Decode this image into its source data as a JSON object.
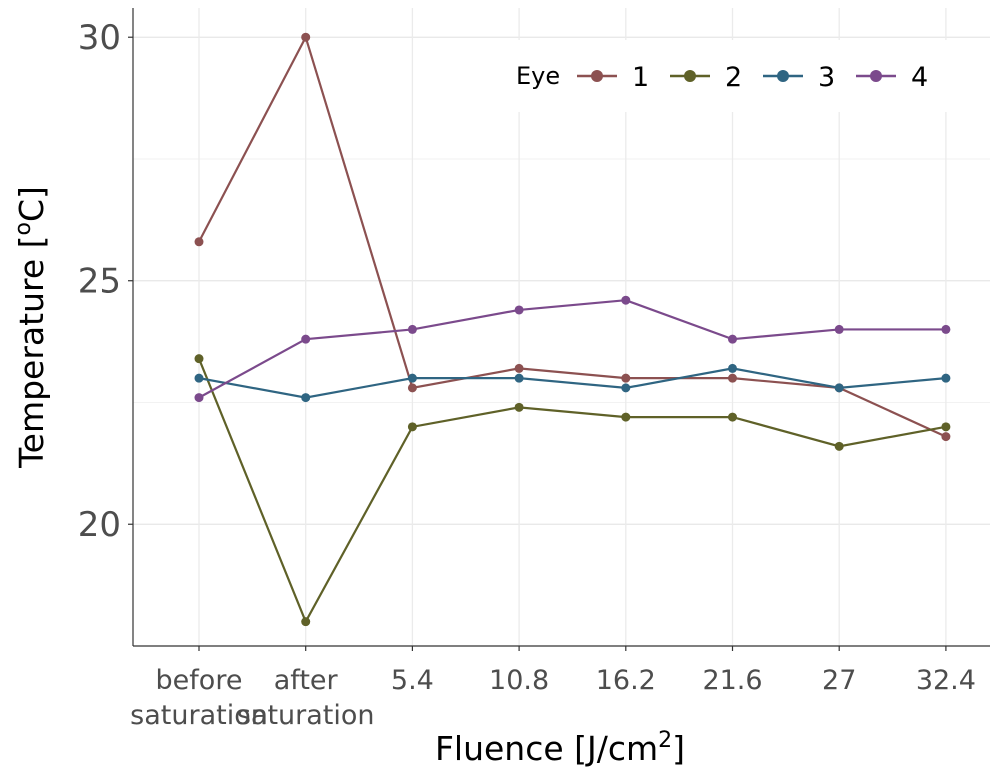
{
  "chart_data": {
    "type": "line",
    "categories": [
      "before saturation",
      "after saturation",
      "5.4",
      "10.8",
      "16.2",
      "21.6",
      "27",
      "32.4"
    ],
    "category_lines": [
      [
        "before",
        "saturation"
      ],
      [
        "after",
        "saturation"
      ],
      [
        "5.4"
      ],
      [
        "10.8"
      ],
      [
        "16.2"
      ],
      [
        "21.6"
      ],
      [
        "27"
      ],
      [
        "32.4"
      ]
    ],
    "series": [
      {
        "name": "1",
        "color": "#8c5151",
        "values": [
          25.8,
          30.0,
          22.8,
          23.2,
          23.0,
          23.0,
          22.8,
          21.8
        ]
      },
      {
        "name": "2",
        "color": "#5f6128",
        "values": [
          23.4,
          18.0,
          22.0,
          22.4,
          22.2,
          22.2,
          21.6,
          22.0
        ]
      },
      {
        "name": "3",
        "color": "#2f6582",
        "values": [
          23.0,
          22.6,
          23.0,
          23.0,
          22.8,
          23.2,
          22.8,
          23.0
        ]
      },
      {
        "name": "4",
        "color": "#7b4a8c",
        "values": [
          22.6,
          23.8,
          24.0,
          24.4,
          24.6,
          23.8,
          24.0,
          24.0
        ]
      }
    ],
    "y_ticks": [
      20,
      25,
      30
    ],
    "ylim": [
      17.5,
      30.6
    ],
    "xlabel_main": "Fluence [J/cm",
    "xlabel_sup": "2",
    "xlabel_end": "]",
    "ylabel_main": "Temperature [",
    "ylabel_sup": "o",
    "ylabel_end": "C]",
    "legend_title": "Eye",
    "legend_position": "top-right",
    "grid": true
  }
}
